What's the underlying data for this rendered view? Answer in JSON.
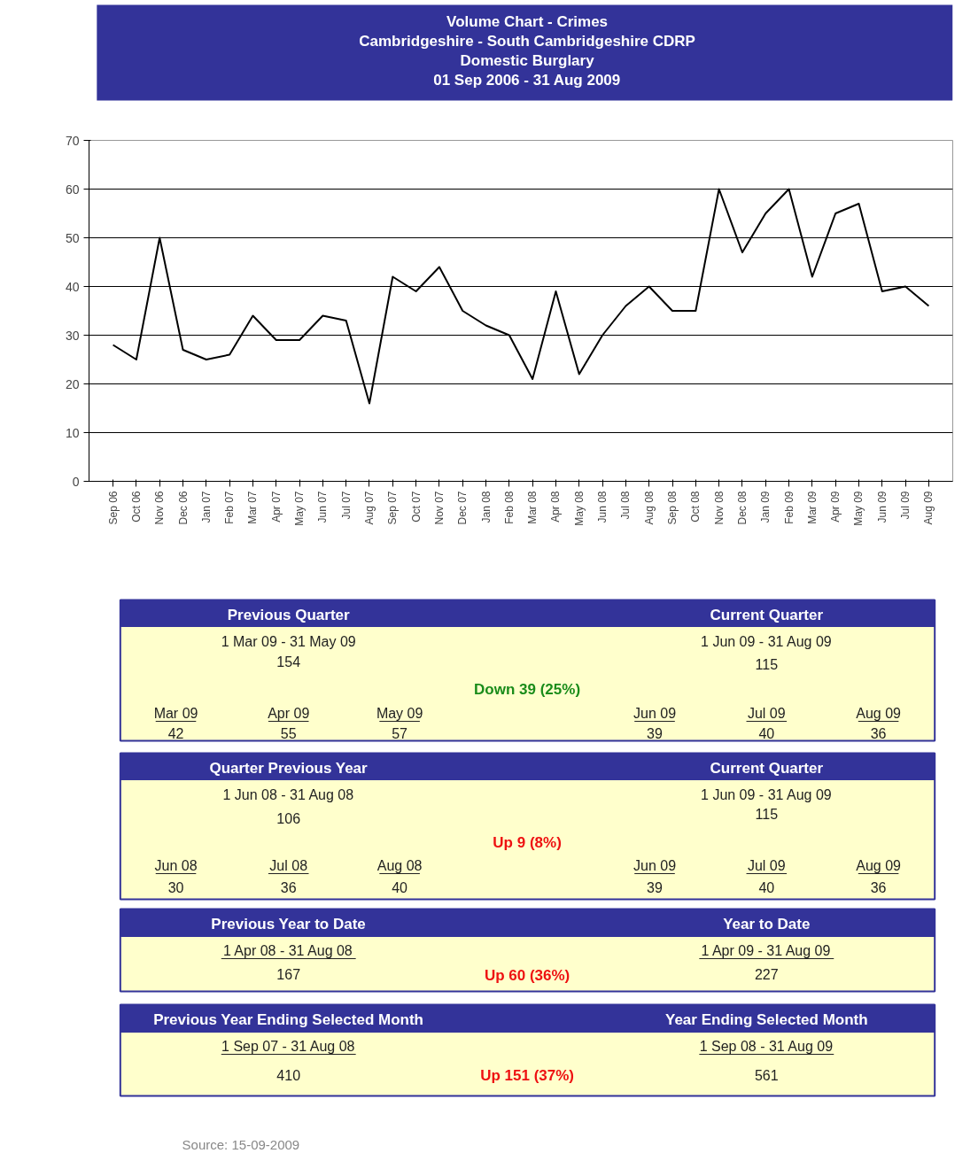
{
  "chart_data": {
    "type": "line",
    "title": "Volume Chart - Crimes",
    "subtitle": "Cambridgeshire - South Cambridgeshire CDRP\nDomestic Burglary\n01 Sep 2006 - 31 Aug 2009",
    "categories": [
      "Sep 06",
      "Oct 06",
      "Nov 06",
      "Dec 06",
      "Jan 07",
      "Feb 07",
      "Mar 07",
      "Apr 07",
      "May 07",
      "Jun 07",
      "Jul 07",
      "Aug 07",
      "Sep 07",
      "Oct 07",
      "Nov 07",
      "Dec 07",
      "Jan 08",
      "Feb 08",
      "Mar 08",
      "Apr 08",
      "May 08",
      "Jun 08",
      "Jul 08",
      "Aug 08",
      "Sep 08",
      "Oct 08",
      "Nov 08",
      "Dec 08",
      "Jan 09",
      "Feb 09",
      "Mar 09",
      "Apr 09",
      "May 09",
      "Jun 09",
      "Jul 09",
      "Aug 09"
    ],
    "series": [
      {
        "color": "#000000",
        "values": [
          28,
          25,
          50,
          27,
          25,
          26,
          34,
          29,
          29,
          34,
          33,
          16,
          42,
          39,
          44,
          35,
          32,
          30,
          21,
          39,
          22,
          30,
          36,
          40,
          35,
          35,
          60,
          47,
          55,
          60,
          42,
          55,
          57,
          39,
          40,
          36
        ]
      }
    ],
    "ylim": [
      0,
      70
    ],
    "yticks": [
      0,
      10,
      20,
      30,
      40,
      50,
      60,
      70
    ],
    "grid": "y",
    "marker": "none",
    "line_style": "solid",
    "annotations": [
      "Previous Quarter",
      "Current Quarter",
      "1 Mar 09 - 31 May 09",
      "154",
      "1 Jun 09 - 31 Aug 09",
      "115",
      "Down 39 (25%)",
      "Mar 09",
      "Apr 09",
      "May 09",
      "Jun 09",
      "Jul 09",
      "Aug 09",
      "42",
      "55",
      "57",
      "39",
      "40",
      "36",
      "Quarter Previous Year",
      "Current Quarter",
      "1 Jun 08 - 31 Aug 08",
      "106",
      "1 Jun 09 - 31 Aug 09",
      "115",
      "Up 9 (8%)",
      "Jun 08",
      "Jul 08",
      "Aug 08",
      "Jun 09",
      "Jul 09",
      "Aug 09",
      "30",
      "36",
      "40",
      "39",
      "40",
      "36",
      "Previous Year to Date",
      "Year to Date",
      "1 Apr 08 - 31 Aug 08",
      "167",
      "1 Apr 09 - 31 Aug 09",
      "227",
      "Up 60 (36%)",
      "Previous Year Ending Selected Month",
      "Year Ending Selected Month",
      "1 Sep 07 - 31 Aug 08",
      "410",
      "1 Sep 08 - 31 Aug 09",
      "561",
      "Up 151 (37%)",
      "Source: 15-09-2009"
    ]
  }
}
